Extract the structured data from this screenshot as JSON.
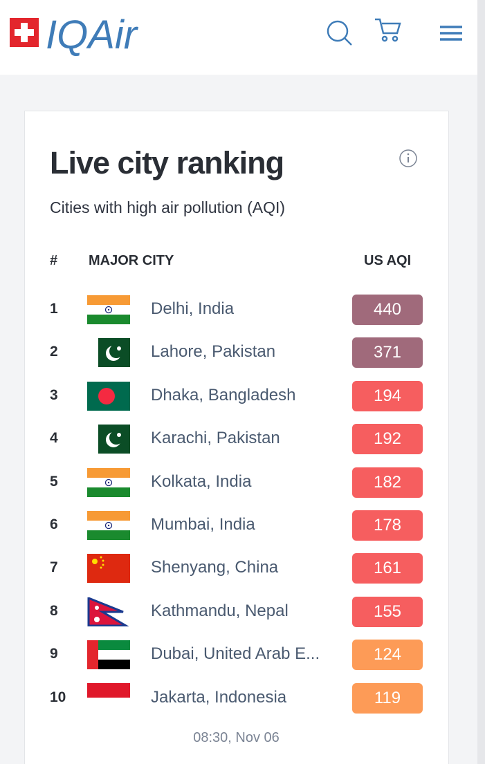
{
  "header": {
    "logo": "IQAir"
  },
  "card": {
    "title": "Live city ranking",
    "subtitle": "Cities with high air pollution (AQI)",
    "columns": [
      "#",
      "MAJOR CITY",
      "US AQI"
    ],
    "rows": [
      {
        "rank": "1",
        "city": "Delhi, India",
        "aqi": "440",
        "color": "#a06a7b"
      },
      {
        "rank": "2",
        "city": "Lahore, Pakistan",
        "aqi": "371",
        "color": "#a06a7b"
      },
      {
        "rank": "3",
        "city": "Dhaka, Bangladesh",
        "aqi": "194",
        "color": "#f65e5f"
      },
      {
        "rank": "4",
        "city": "Karachi, Pakistan",
        "aqi": "192",
        "color": "#f65e5f"
      },
      {
        "rank": "5",
        "city": "Kolkata, India",
        "aqi": "182",
        "color": "#f65e5f"
      },
      {
        "rank": "6",
        "city": "Mumbai, India",
        "aqi": "178",
        "color": "#f65e5f"
      },
      {
        "rank": "7",
        "city": "Shenyang, China",
        "aqi": "161",
        "color": "#f65e5f"
      },
      {
        "rank": "8",
        "city": "Kathmandu, Nepal",
        "aqi": "155",
        "color": "#f65e5f"
      },
      {
        "rank": "9",
        "city": "Dubai, United Arab E...",
        "aqi": "124",
        "color": "#fd9b57"
      },
      {
        "rank": "10",
        "city": "Jakarta, Indonesia",
        "aqi": "119",
        "color": "#fd9b57"
      }
    ],
    "timestamp": "08:30, Nov 06"
  }
}
